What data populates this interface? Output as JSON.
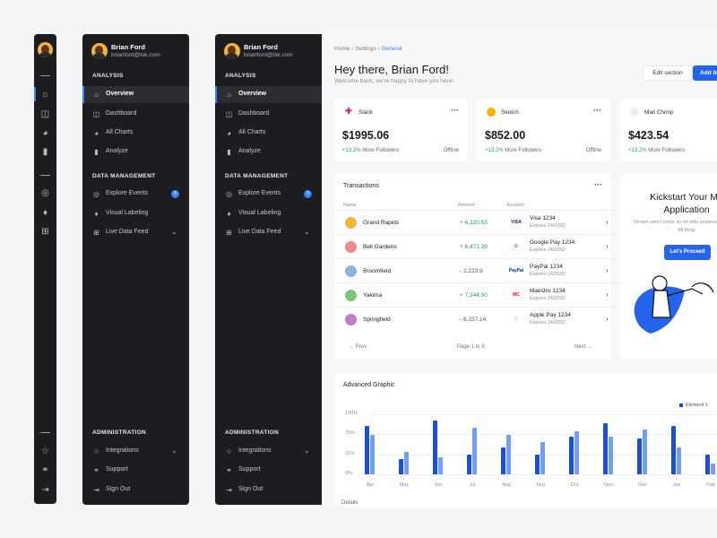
{
  "user": {
    "name": "Brian Ford",
    "email": "brianford@lok.com"
  },
  "sidebar": {
    "analysis_title": "ANALYSIS",
    "data_title": "DATA MANAGEMENT",
    "admin_title": "ADMINISTRATION",
    "items": [
      {
        "label": "Overview",
        "icon": "home-icon"
      },
      {
        "label": "Dashboard",
        "icon": "layout-icon"
      },
      {
        "label": "All Charts",
        "icon": "pie-chart-icon"
      },
      {
        "label": "Analyze",
        "icon": "bar-chart-icon"
      },
      {
        "label": "Explore Events",
        "icon": "globe-icon",
        "badge": "5"
      },
      {
        "label": "Visual Labeling",
        "icon": "tag-icon"
      },
      {
        "label": "Live Data Feed",
        "icon": "grid-icon"
      },
      {
        "label": "Integrations",
        "icon": "star-icon"
      },
      {
        "label": "Support",
        "icon": "headphones-icon"
      },
      {
        "label": "Sign Out",
        "icon": "logout-icon"
      }
    ]
  },
  "breadcrumb": {
    "home": "Home",
    "settings": "Settings",
    "general": "General"
  },
  "header": {
    "greeting": "Hey there, Brian Ford!",
    "subtitle": "Welcome back, we're happy to have you here!",
    "edit_label": "Edit section",
    "add_label": "Add ite"
  },
  "stats": [
    {
      "name": "Slack",
      "amount": "$1995.06",
      "change": "+13.2%",
      "change_label": "More Followers",
      "status": "Offline",
      "color": "#e01e5a"
    },
    {
      "name": "Sketch",
      "amount": "$852.00",
      "change": "+13.2%",
      "change_label": "More Followers",
      "status": "Offline",
      "color": "#f7b500"
    },
    {
      "name": "Mail Chimp",
      "amount": "$423.54",
      "change": "+13.2%",
      "change_label": "More Followers",
      "status": "",
      "color": "#222222"
    }
  ],
  "transactions": {
    "title": "Transactions",
    "columns": {
      "name": "Name",
      "amount": "Amount",
      "account": "Account"
    },
    "rows": [
      {
        "name": "Grand Rapids",
        "amount": "+ 6,320.53",
        "logo": "VISA",
        "account": "Visa 1234",
        "expires": "Expires 24/2032",
        "positive": true,
        "avatar": "#f3b43a"
      },
      {
        "name": "Bell Gardens",
        "amount": "+ 6,471.39",
        "logo": "G",
        "account": "Google Pay 1234",
        "expires": "Expires 24/2032",
        "positive": true,
        "avatar": "#f08a8a"
      },
      {
        "name": "Broomfield",
        "amount": "- 2,223.9",
        "logo": "PayPal",
        "account": "PayPal 1234",
        "expires": "Expires 24/2032",
        "positive": false,
        "avatar": "#8fb3e0"
      },
      {
        "name": "Yakima",
        "amount": "+ 7,344.50",
        "logo": "MC",
        "account": "Maestro 1234",
        "expires": "Expires 24/2032",
        "positive": true,
        "avatar": "#7bc67b"
      },
      {
        "name": "Springfield",
        "amount": "- 6,157.14",
        "logo": "",
        "account": "Apple Pay 1234",
        "expires": "Expires 24/2032",
        "positive": false,
        "avatar": "#c77bc7"
      }
    ],
    "prev": "Prev",
    "next": "Next",
    "page": "Page 1 to 8"
  },
  "promo": {
    "title": "Kickstart Your Mo Application",
    "text": "Ornare sem t tortor ac mi tellu scelerisque purus. Mi fringi",
    "button": "Let's Proceed"
  },
  "chart_data": {
    "type": "bar",
    "title": "Advanced Graphic",
    "categories": [
      "Apr",
      "May",
      "Jun",
      "Jul",
      "Aug",
      "Sep",
      "Oct",
      "Nov",
      "Dec",
      "Jan",
      "Feb"
    ],
    "series": [
      {
        "name": "Element 1",
        "values": [
          80,
          26,
          90,
          33,
          45,
          33,
          63,
          85,
          59,
          80,
          33
        ]
      },
      {
        "name": "",
        "values": [
          66,
          37,
          28,
          77,
          65,
          53,
          71,
          62,
          74,
          45,
          18
        ]
      }
    ],
    "yticks": [
      "100%",
      "75%",
      "25%",
      "0%"
    ],
    "ylim": [
      0,
      100
    ],
    "legend": "top-right",
    "colors": [
      "#1d4ed8",
      "#6ea0f5"
    ]
  },
  "details_label": "Details"
}
